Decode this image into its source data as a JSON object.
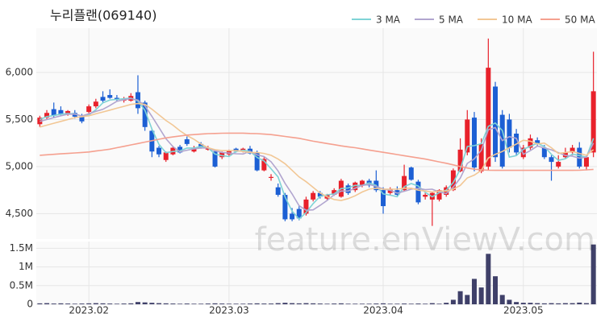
{
  "chart_data": {
    "type": "candlestick",
    "title": "누리플랜(069140)",
    "watermark": "feature.enViewV.com",
    "categories": [
      null,
      null,
      null,
      null,
      null,
      null,
      null,
      "2023.02",
      null,
      null,
      null,
      null,
      null,
      null,
      null,
      null,
      null,
      null,
      null,
      null,
      null,
      null,
      null,
      null,
      null,
      null,
      null,
      "2023.03",
      null,
      null,
      null,
      null,
      null,
      null,
      null,
      null,
      null,
      null,
      null,
      null,
      null,
      null,
      null,
      null,
      null,
      null,
      null,
      null,
      null,
      "2023.04",
      null,
      null,
      null,
      null,
      null,
      null,
      null,
      null,
      null,
      null,
      null,
      null,
      null,
      null,
      null,
      null,
      null,
      null,
      null,
      "2023.05",
      null,
      null,
      null,
      null,
      null,
      null,
      null,
      null,
      null,
      null
    ],
    "open": [
      5450,
      5520,
      5610,
      5600,
      5560,
      5570,
      5530,
      5580,
      5640,
      5740,
      5760,
      5730,
      5700,
      5700,
      5790,
      5680,
      5380,
      5200,
      5070,
      5130,
      5210,
      5290,
      5160,
      5240,
      5180,
      5160,
      5100,
      5130,
      5190,
      5170,
      5190,
      5150,
      4960,
      4880,
      4780,
      4700,
      4500,
      4550,
      4500,
      4650,
      4720,
      4660,
      4700,
      4680,
      4800,
      4750,
      4800,
      4850,
      4850,
      4750,
      4720,
      4750,
      4750,
      4990,
      4840,
      4680,
      4650,
      4650,
      4700,
      4750,
      4950,
      5150,
      5520,
      4950,
      5000,
      5850,
      5550,
      5500,
      5350,
      5100,
      5200,
      5280,
      5200,
      5100,
      5000,
      5100,
      5150,
      5200,
      5000,
      5150
    ],
    "high": [
      5540,
      5600,
      5680,
      5640,
      5600,
      5600,
      5560,
      5660,
      5720,
      5800,
      5820,
      5760,
      5740,
      5780,
      5970,
      5700,
      5400,
      5220,
      5160,
      5220,
      5230,
      5320,
      5220,
      5260,
      5220,
      5180,
      5160,
      5180,
      5200,
      5200,
      5220,
      5170,
      5100,
      4920,
      4820,
      4720,
      4560,
      4580,
      4680,
      4740,
      4740,
      4710,
      4770,
      4870,
      4820,
      4840,
      4860,
      4870,
      4960,
      4780,
      4780,
      4790,
      5020,
      5000,
      4860,
      4720,
      4730,
      4760,
      4800,
      4980,
      5300,
      5600,
      5580,
      5300,
      6360,
      5900,
      5600,
      5560,
      5400,
      5230,
      5340,
      5310,
      5230,
      5120,
      5120,
      5200,
      5230,
      5260,
      5120,
      6220
    ],
    "low": [
      5420,
      5500,
      5520,
      5540,
      5540,
      5510,
      5460,
      5560,
      5620,
      5680,
      5720,
      5700,
      5680,
      5690,
      5560,
      5380,
      5100,
      5100,
      5050,
      5120,
      5140,
      5220,
      5150,
      5190,
      5170,
      4990,
      5080,
      5110,
      5150,
      5150,
      5130,
      4950,
      4950,
      4850,
      4680,
      4420,
      4420,
      4430,
      4480,
      4630,
      4660,
      4640,
      4690,
      4670,
      4700,
      4730,
      4780,
      4780,
      4730,
      4500,
      4700,
      4690,
      4740,
      4850,
      4600,
      4650,
      4370,
      4630,
      4680,
      4740,
      4940,
      5120,
      4950,
      4930,
      4960,
      5050,
      4980,
      5150,
      5120,
      5080,
      5180,
      5220,
      5080,
      4850,
      4980,
      5080,
      5120,
      4980,
      4960,
      5100
    ],
    "close": [
      5520,
      5570,
      5540,
      5560,
      5590,
      5530,
      5480,
      5640,
      5690,
      5700,
      5730,
      5710,
      5720,
      5750,
      5620,
      5420,
      5160,
      5130,
      5150,
      5200,
      5150,
      5240,
      5200,
      5200,
      5200,
      5000,
      5150,
      5170,
      5160,
      5190,
      5140,
      4960,
      5080,
      4890,
      4700,
      4440,
      4440,
      4450,
      4650,
      4720,
      4680,
      4700,
      4750,
      4850,
      4720,
      4830,
      4850,
      4800,
      4750,
      4580,
      4760,
      4700,
      4900,
      4860,
      4620,
      4700,
      4720,
      4750,
      4780,
      4960,
      5180,
      5500,
      4990,
      5240,
      6050,
      5100,
      5000,
      5200,
      5150,
      5200,
      5300,
      5240,
      5100,
      5050,
      5050,
      5150,
      5200,
      5000,
      5100,
      5800
    ],
    "up_color": "#e8212b",
    "down_color": "#1c5fd4",
    "ylim": [
      4230,
      6470
    ],
    "yticks": [
      {
        "value": 4500,
        "label": "4,500"
      },
      {
        "value": 5000,
        "label": "5,000"
      },
      {
        "value": 5500,
        "label": "5,500"
      },
      {
        "value": 6000,
        "label": "6,000"
      }
    ],
    "grid": true,
    "legend": "top-right",
    "series": [
      {
        "name": "3 MA",
        "color": "#7fd3d6",
        "values": [
          5500,
          5530,
          5543,
          5557,
          5563,
          5560,
          5533,
          5550,
          5603,
          5677,
          5707,
          5713,
          5720,
          5727,
          5697,
          5597,
          5400,
          5237,
          5147,
          5160,
          5167,
          5197,
          5197,
          5213,
          5200,
          5133,
          5117,
          5107,
          5160,
          5173,
          5163,
          5097,
          5060,
          4977,
          4890,
          4677,
          4527,
          4443,
          4513,
          4607,
          4683,
          4700,
          4710,
          4767,
          4773,
          4800,
          4800,
          4827,
          4800,
          4710,
          4697,
          4680,
          4787,
          4820,
          4793,
          4727,
          4680,
          4723,
          4750,
          4830,
          4973,
          5213,
          5223,
          5243,
          5427,
          5463,
          5383,
          5100,
          5117,
          5183,
          5217,
          5247,
          5213,
          5130,
          5067,
          5083,
          5133,
          5117,
          5100,
          5300
        ]
      },
      {
        "name": "5 MA",
        "color": "#b1a5cf",
        "values": [
          5480,
          5500,
          5520,
          5540,
          5556,
          5558,
          5538,
          5560,
          5586,
          5608,
          5648,
          5694,
          5710,
          5722,
          5706,
          5644,
          5534,
          5416,
          5296,
          5212,
          5158,
          5174,
          5188,
          5198,
          5198,
          5168,
          5150,
          5144,
          5136,
          5134,
          5162,
          5124,
          5106,
          5052,
          4954,
          4822,
          4710,
          4584,
          4536,
          4540,
          4588,
          4640,
          4700,
          4740,
          4740,
          4770,
          4800,
          4810,
          4790,
          4762,
          4748,
          4718,
          4738,
          4760,
          4768,
          4756,
          4760,
          4730,
          4714,
          4782,
          4878,
          5034,
          5082,
          5174,
          5392,
          5414,
          5276,
          5318,
          5300,
          5130,
          5170,
          5218,
          5198,
          5178,
          5148,
          5118,
          5110,
          5090,
          5100,
          5250
        ]
      },
      {
        "name": "10 MA",
        "color": "#f2c795",
        "values": [
          5420,
          5440,
          5460,
          5480,
          5500,
          5520,
          5530,
          5540,
          5560,
          5580,
          5600,
          5620,
          5640,
          5660,
          5670,
          5660,
          5610,
          5550,
          5490,
          5440,
          5380,
          5330,
          5290,
          5240,
          5200,
          5180,
          5170,
          5170,
          5170,
          5160,
          5150,
          5150,
          5140,
          5120,
          5080,
          5030,
          4960,
          4890,
          4840,
          4780,
          4720,
          4680,
          4650,
          4640,
          4660,
          4690,
          4730,
          4760,
          4770,
          4760,
          4760,
          4760,
          4770,
          4770,
          4750,
          4740,
          4730,
          4740,
          4740,
          4760,
          4800,
          4880,
          4910,
          4960,
          5090,
          5130,
          5160,
          5200,
          5240,
          5280,
          5270,
          5240,
          5250,
          5200,
          5140,
          5150,
          5160,
          5140,
          5120,
          5180
        ]
      },
      {
        "name": "50 MA",
        "color": "#f5a08f",
        "values": [
          5120,
          5125,
          5130,
          5135,
          5140,
          5145,
          5150,
          5155,
          5165,
          5175,
          5185,
          5200,
          5215,
          5230,
          5245,
          5260,
          5275,
          5290,
          5305,
          5315,
          5325,
          5335,
          5340,
          5345,
          5350,
          5352,
          5354,
          5355,
          5355,
          5355,
          5352,
          5350,
          5345,
          5340,
          5330,
          5320,
          5310,
          5300,
          5285,
          5270,
          5258,
          5245,
          5233,
          5220,
          5210,
          5200,
          5188,
          5176,
          5164,
          5152,
          5140,
          5128,
          5116,
          5104,
          5092,
          5080,
          5065,
          5050,
          5035,
          5018,
          5000,
          4985,
          4972,
          4965,
          4962,
          4960,
          4960,
          4960,
          4960,
          4960,
          4960,
          4960,
          4960,
          4960,
          4960,
          4960,
          4960,
          4962,
          4965,
          4970
        ]
      }
    ],
    "volume": {
      "color": "#3f4069",
      "values": [
        25000,
        30000,
        20000,
        25000,
        20000,
        15000,
        20000,
        25000,
        30000,
        25000,
        20000,
        15000,
        20000,
        25000,
        60000,
        50000,
        40000,
        30000,
        25000,
        20000,
        15000,
        20000,
        15000,
        15000,
        20000,
        25000,
        20000,
        15000,
        15000,
        15000,
        20000,
        25000,
        20000,
        20000,
        30000,
        40000,
        30000,
        25000,
        30000,
        25000,
        20000,
        15000,
        20000,
        25000,
        15000,
        15000,
        15000,
        15000,
        20000,
        25000,
        15000,
        15000,
        20000,
        15000,
        20000,
        15000,
        30000,
        15000,
        40000,
        120000,
        350000,
        250000,
        680000,
        450000,
        1350000,
        750000,
        250000,
        120000,
        60000,
        40000,
        40000,
        30000,
        25000,
        30000,
        25000,
        30000,
        30000,
        45000,
        30000,
        1600000
      ],
      "ylim": [
        0,
        1680000
      ],
      "yticks": [
        0,
        {
          "value": 500000,
          "label": "0.5M"
        },
        {
          "value": 1000000,
          "label": "1M"
        },
        {
          "value": 1500000,
          "label": "1.5M"
        }
      ]
    }
  }
}
